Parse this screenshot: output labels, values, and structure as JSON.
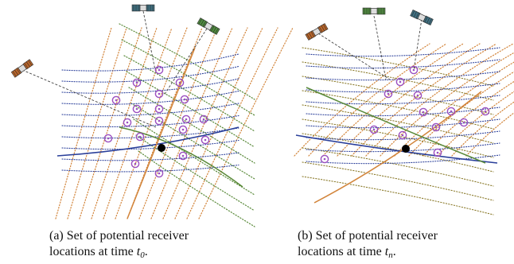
{
  "panels": [
    {
      "caption_label": "(a)",
      "caption_line1": "Set of potential receiver",
      "caption_line2_prefix": "locations at time ",
      "time_symbol": "t",
      "time_subscript": "0",
      "caption_suffix": "."
    },
    {
      "caption_label": "(b)",
      "caption_line1": "Set of potential receiver",
      "caption_line2_prefix": "locations at time ",
      "time_symbol": "t",
      "time_subscript": "n",
      "caption_suffix": "."
    }
  ],
  "colors": {
    "blue_arcs": "#2a3f9a",
    "orange_arcs": "#d2843a",
    "green_arcs": "#5a8a3a",
    "olive_arcs": "#8a7a2a",
    "candidate_circle": "#9b4fc0",
    "true_location": "#000000",
    "satellite_orange": "#b8652a",
    "satellite_green": "#4f8a3f",
    "satellite_teal": "#3f6f80"
  },
  "icons": [
    "satellite-icon"
  ]
}
